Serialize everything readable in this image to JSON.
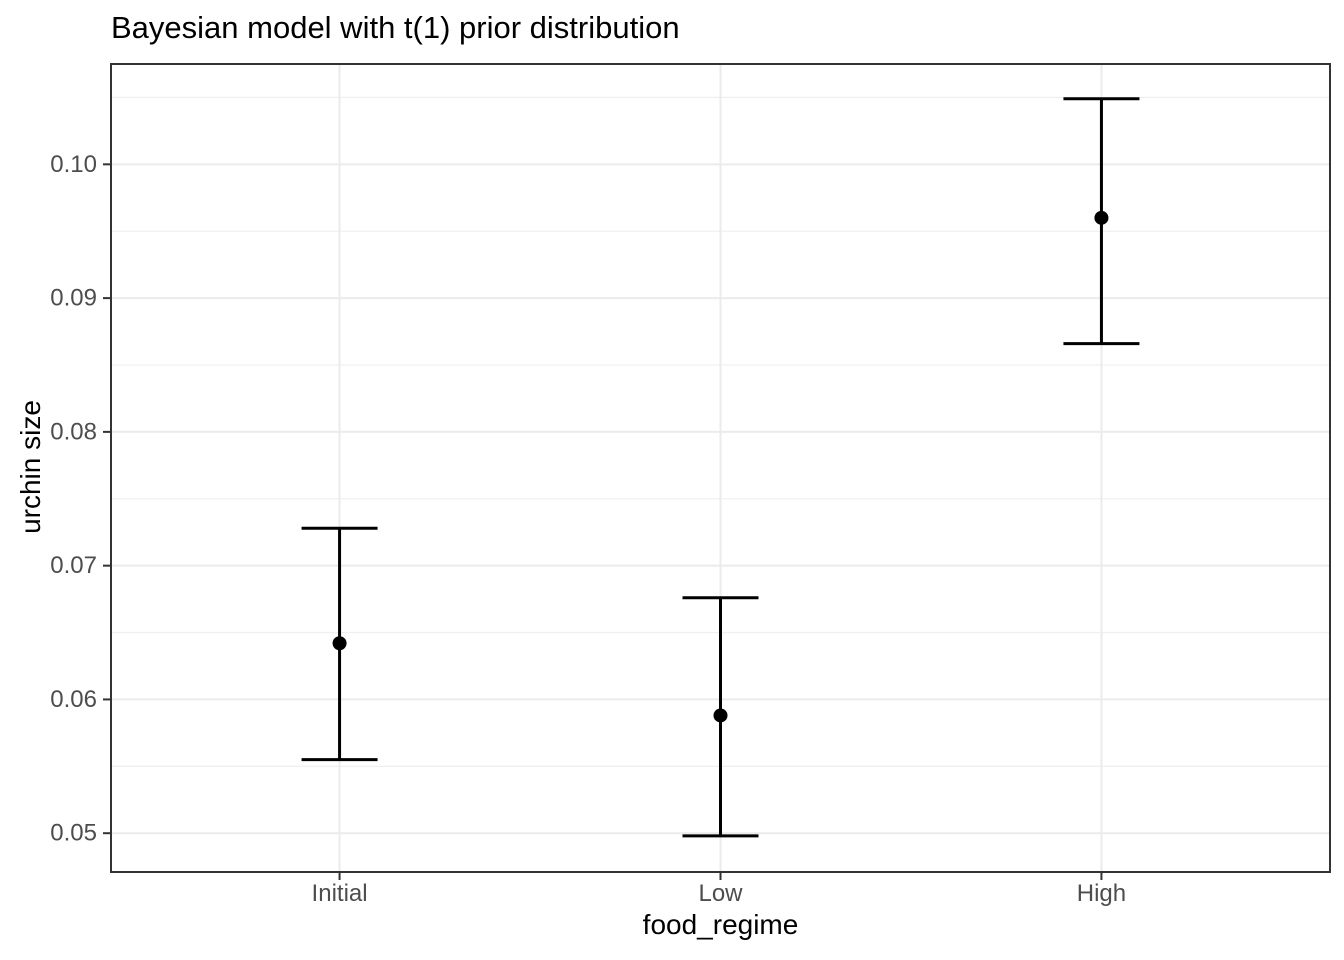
{
  "chart_data": {
    "type": "scatter",
    "subtype": "point-with-errorbar",
    "title": "Bayesian model with t(1) prior distribution",
    "xlabel": "food_regime",
    "ylabel": "urchin size",
    "categories": [
      "Initial",
      "Low",
      "High"
    ],
    "series": [
      {
        "points": [
          {
            "x": "Initial",
            "y": 0.0642,
            "ymin": 0.0555,
            "ymax": 0.0728
          },
          {
            "x": "Low",
            "y": 0.0588,
            "ymin": 0.0498,
            "ymax": 0.0676
          },
          {
            "x": "High",
            "y": 0.096,
            "ymin": 0.0866,
            "ymax": 0.1049
          }
        ]
      }
    ],
    "ylim": [
      0.0471,
      0.1075
    ],
    "y_major_ticks": [
      "0.05",
      "0.06",
      "0.07",
      "0.08",
      "0.09",
      "0.10"
    ],
    "y_minor_gridlines": [
      0.055,
      0.065,
      0.075,
      0.085,
      0.095,
      0.105
    ],
    "grid": "horizontal major+minor, vertical major at categories",
    "legend": "none",
    "theme": {
      "background": "#FFFFFF",
      "panel_border": "#333333",
      "axis_tick_color": "#333333",
      "grid_major": "#EBEBEB",
      "grid_minor": "#F0F0F0",
      "tick_label_color": "#4D4D4D",
      "axis_title_color": "#000000",
      "title_color": "#000000",
      "point_color": "#000000",
      "errorbar_color": "#000000"
    }
  }
}
